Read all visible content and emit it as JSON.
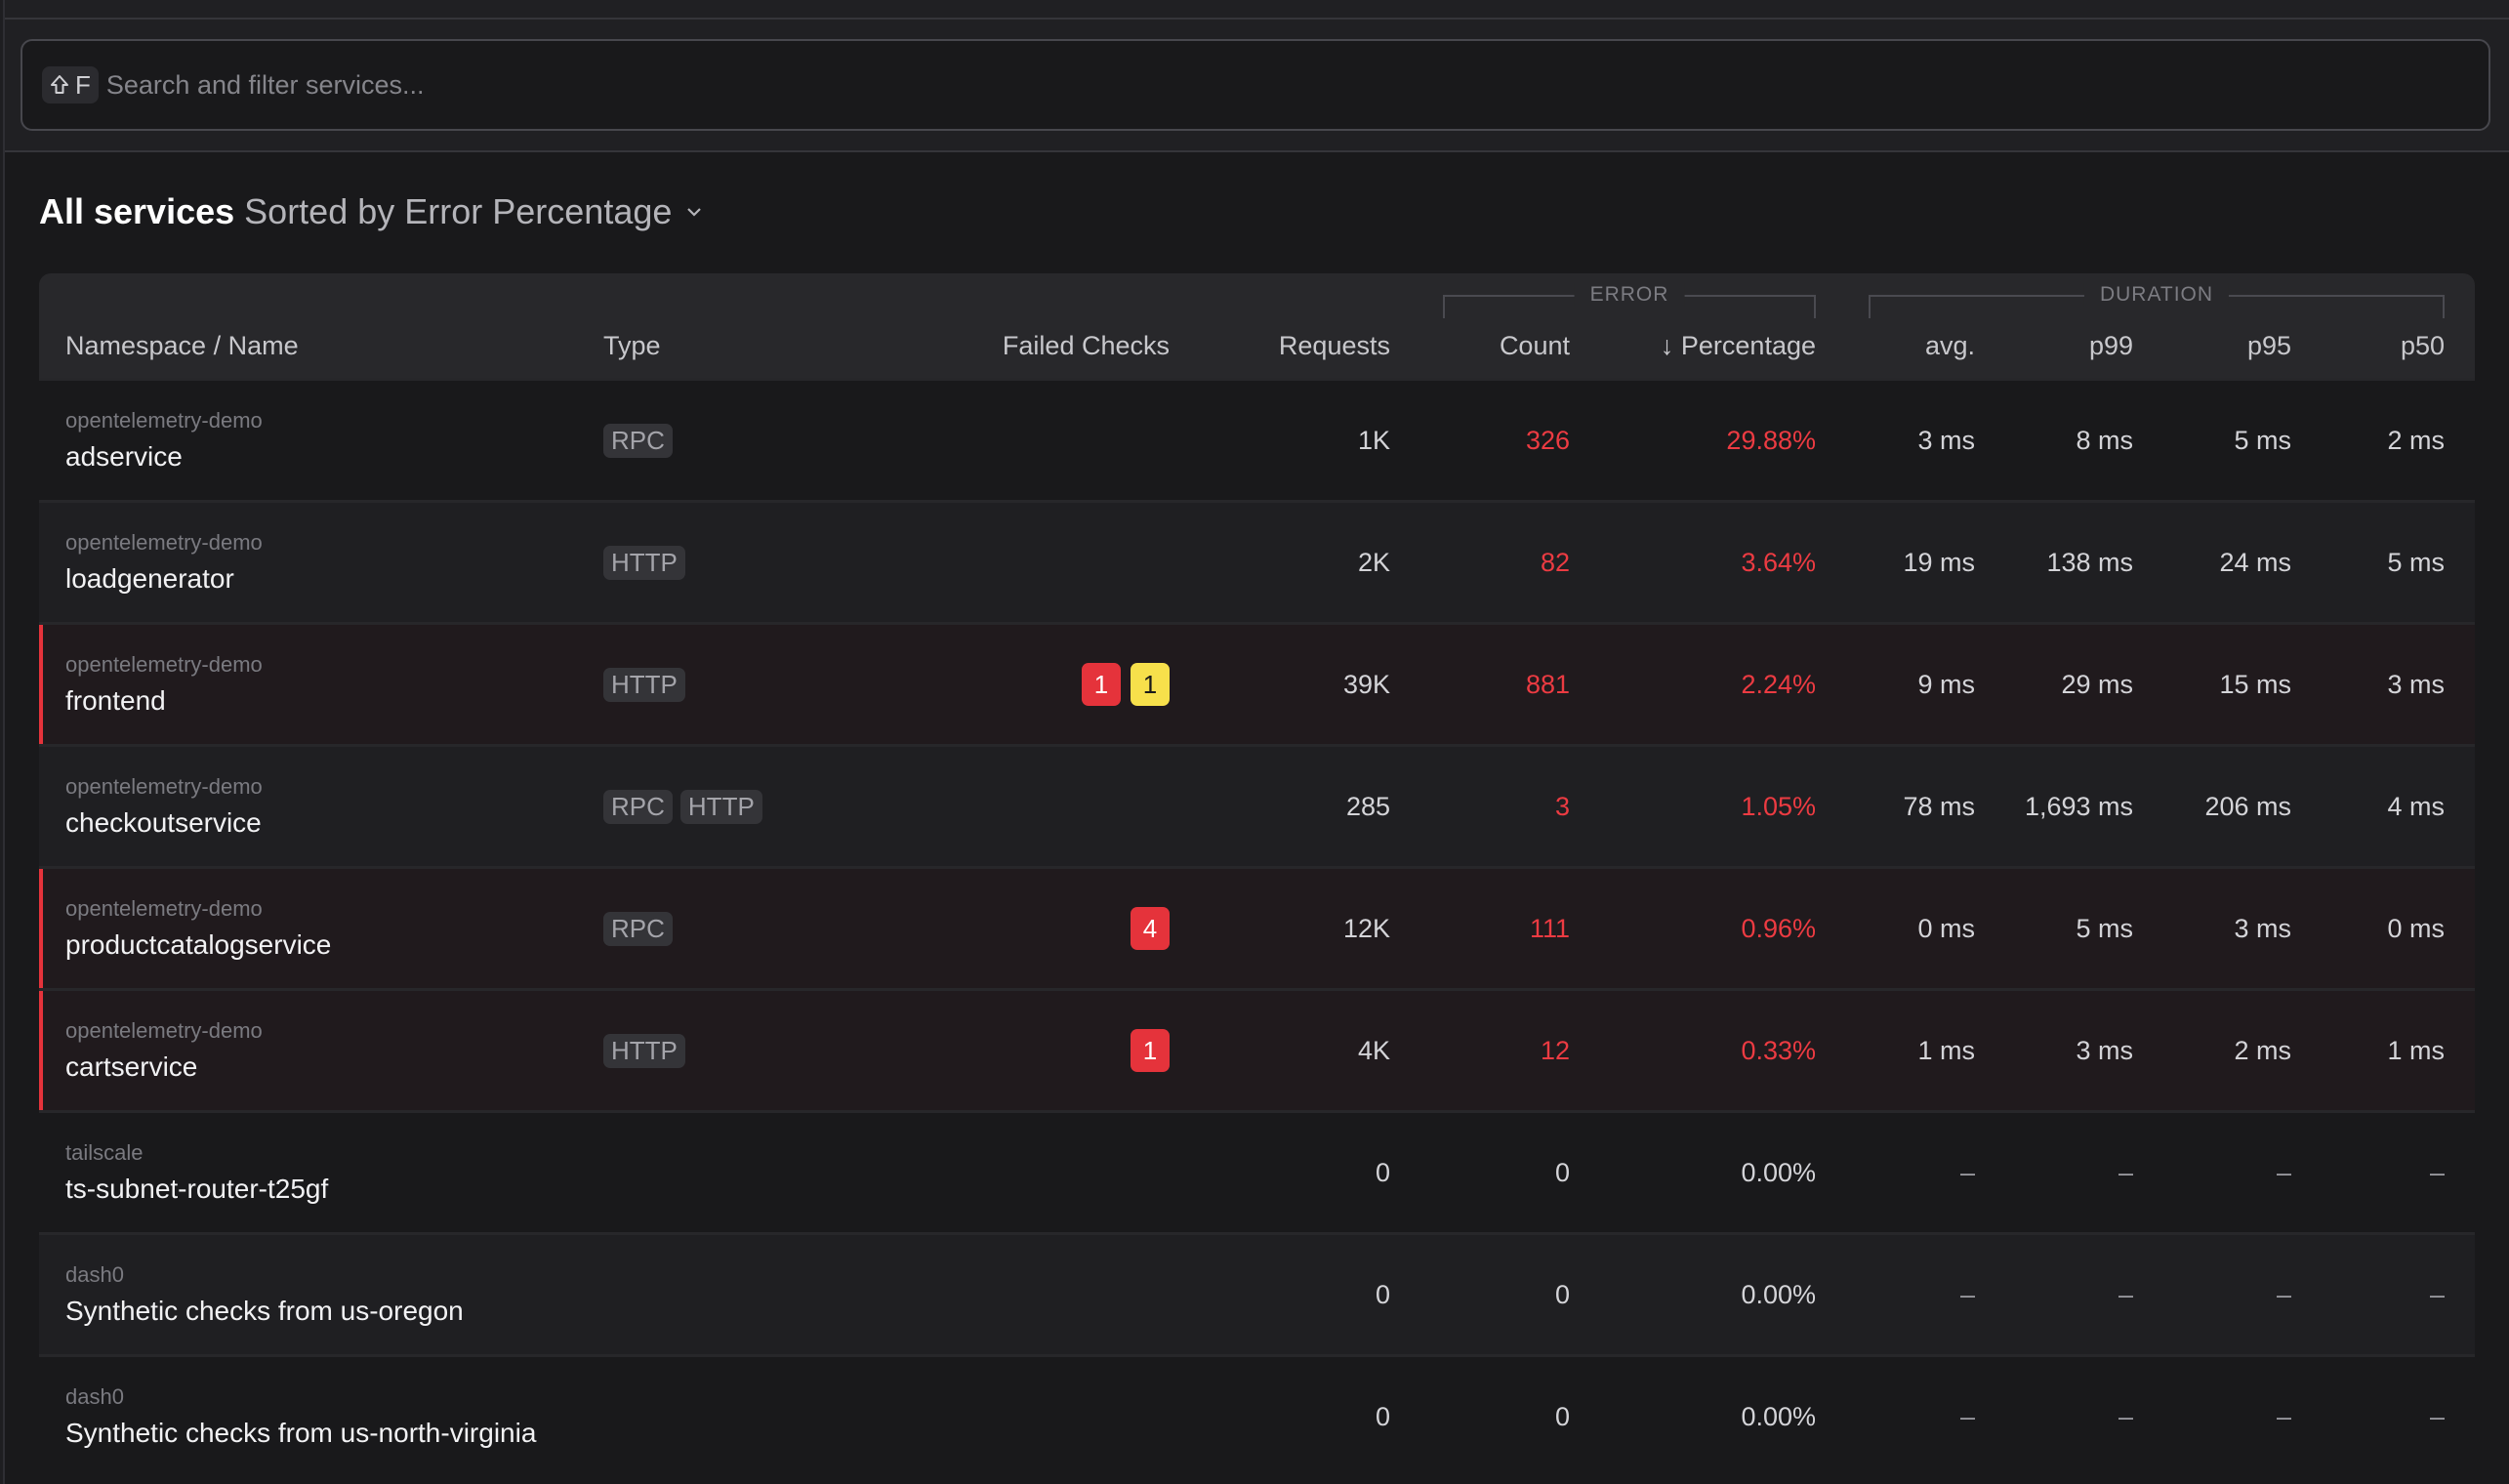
{
  "search": {
    "shortcut_key": "F",
    "placeholder": "Search and filter services..."
  },
  "title": {
    "main": "All services",
    "sort": "Sorted by Error Percentage"
  },
  "table": {
    "groups": {
      "error": "ERROR",
      "duration": "DURATION"
    },
    "columns": {
      "name": "Namespace / Name",
      "type": "Type",
      "failed": "Failed Checks",
      "requests": "Requests",
      "count": "Count",
      "percentage": "Percentage",
      "avg": "avg.",
      "p99": "p99",
      "p95": "p95",
      "p50": "p50"
    },
    "rows": [
      {
        "namespace": "opentelemetry-demo",
        "name": "adservice",
        "types": [
          "RPC"
        ],
        "failed": [],
        "requests": "1K",
        "count": "326",
        "percentage": "29.88%",
        "avg": "3 ms",
        "p99": "8 ms",
        "p95": "5 ms",
        "p50": "2 ms",
        "error": false,
        "err_values": true
      },
      {
        "namespace": "opentelemetry-demo",
        "name": "loadgenerator",
        "types": [
          "HTTP"
        ],
        "failed": [],
        "requests": "2K",
        "count": "82",
        "percentage": "3.64%",
        "avg": "19 ms",
        "p99": "138 ms",
        "p95": "24 ms",
        "p50": "5 ms",
        "error": false,
        "err_values": true
      },
      {
        "namespace": "opentelemetry-demo",
        "name": "frontend",
        "types": [
          "HTTP"
        ],
        "failed": [
          {
            "value": "1",
            "level": "critical"
          },
          {
            "value": "1",
            "level": "degraded"
          }
        ],
        "requests": "39K",
        "count": "881",
        "percentage": "2.24%",
        "avg": "9 ms",
        "p99": "29 ms",
        "p95": "15 ms",
        "p50": "3 ms",
        "error": true,
        "err_values": true
      },
      {
        "namespace": "opentelemetry-demo",
        "name": "checkoutservice",
        "types": [
          "RPC",
          "HTTP"
        ],
        "failed": [],
        "requests": "285",
        "count": "3",
        "percentage": "1.05%",
        "avg": "78 ms",
        "p99": "1,693 ms",
        "p95": "206 ms",
        "p50": "4 ms",
        "error": false,
        "err_values": true
      },
      {
        "namespace": "opentelemetry-demo",
        "name": "productcatalogservice",
        "types": [
          "RPC"
        ],
        "failed": [
          {
            "value": "4",
            "level": "critical"
          }
        ],
        "requests": "12K",
        "count": "111",
        "percentage": "0.96%",
        "avg": "0 ms",
        "p99": "5 ms",
        "p95": "3 ms",
        "p50": "0 ms",
        "error": true,
        "err_values": true
      },
      {
        "namespace": "opentelemetry-demo",
        "name": "cartservice",
        "types": [
          "HTTP"
        ],
        "failed": [
          {
            "value": "1",
            "level": "critical"
          }
        ],
        "requests": "4K",
        "count": "12",
        "percentage": "0.33%",
        "avg": "1 ms",
        "p99": "3 ms",
        "p95": "2 ms",
        "p50": "1 ms",
        "error": true,
        "err_values": true
      },
      {
        "namespace": "tailscale",
        "name": "ts-subnet-router-t25gf",
        "types": [],
        "failed": [],
        "requests": "0",
        "count": "0",
        "percentage": "0.00%",
        "avg": "–",
        "p99": "–",
        "p95": "–",
        "p50": "–",
        "error": false,
        "err_values": false
      },
      {
        "namespace": "dash0",
        "name": "Synthetic checks from us-oregon",
        "types": [],
        "failed": [],
        "requests": "0",
        "count": "0",
        "percentage": "0.00%",
        "avg": "–",
        "p99": "–",
        "p95": "–",
        "p50": "–",
        "error": false,
        "err_values": false
      },
      {
        "namespace": "dash0",
        "name": "Synthetic checks from us-north-virginia",
        "types": [],
        "failed": [],
        "requests": "0",
        "count": "0",
        "percentage": "0.00%",
        "avg": "–",
        "p99": "–",
        "p95": "–",
        "p50": "–",
        "error": false,
        "err_values": false
      }
    ]
  },
  "colors": {
    "critical": "#e5333b",
    "degraded": "#f7e04b",
    "error_text": "#ec3b42"
  }
}
